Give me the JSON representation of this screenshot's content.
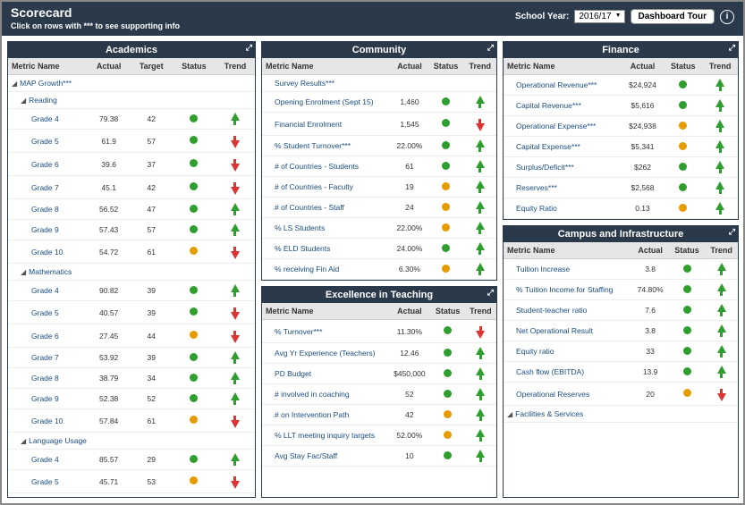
{
  "colors": {
    "green": "#2e9e2e",
    "orange": "#e69b00",
    "red": "#d33"
  },
  "header": {
    "title": "Scorecard",
    "subtitle": "Click on rows with *** to see supporting info",
    "schoolYearLabel": "School Year:",
    "schoolYear": "2016/17",
    "tour": "Dashboard Tour",
    "info": "i"
  },
  "columns": {
    "metric": "Metric Name",
    "actual": "Actual",
    "target": "Target",
    "status": "Status",
    "trend": "Trend"
  },
  "panels": {
    "academics": {
      "title": "Academics",
      "rows": [
        {
          "type": "group",
          "indent": 0,
          "name": "MAP Growth***"
        },
        {
          "type": "group",
          "indent": 1,
          "name": "Reading"
        },
        {
          "type": "row",
          "indent": 2,
          "name": "Grade 4",
          "actual": "79.38",
          "target": "42",
          "status": "green",
          "trend": "up-green"
        },
        {
          "type": "row",
          "indent": 2,
          "name": "Grade 5",
          "actual": "61.9",
          "target": "57",
          "status": "green",
          "trend": "down-red"
        },
        {
          "type": "row",
          "indent": 2,
          "name": "Grade 6",
          "actual": "39.6",
          "target": "37",
          "status": "green",
          "trend": "down-red"
        },
        {
          "type": "row",
          "indent": 2,
          "name": "Grade 7",
          "actual": "45.1",
          "target": "42",
          "status": "green",
          "trend": "down-red"
        },
        {
          "type": "row",
          "indent": 2,
          "name": "Grade 8",
          "actual": "56.52",
          "target": "47",
          "status": "green",
          "trend": "up-green"
        },
        {
          "type": "row",
          "indent": 2,
          "name": "Grade 9",
          "actual": "57.43",
          "target": "57",
          "status": "green",
          "trend": "up-green"
        },
        {
          "type": "row",
          "indent": 2,
          "name": "Grade 10",
          "actual": "54.72",
          "target": "61",
          "status": "orange",
          "trend": "down-red"
        },
        {
          "type": "group",
          "indent": 1,
          "name": "Mathematics"
        },
        {
          "type": "row",
          "indent": 2,
          "name": "Grade 4",
          "actual": "90.82",
          "target": "39",
          "status": "green",
          "trend": "up-green"
        },
        {
          "type": "row",
          "indent": 2,
          "name": "Grade 5",
          "actual": "40.57",
          "target": "39",
          "status": "green",
          "trend": "down-red"
        },
        {
          "type": "row",
          "indent": 2,
          "name": "Grade 6",
          "actual": "27.45",
          "target": "44",
          "status": "orange",
          "trend": "down-red"
        },
        {
          "type": "row",
          "indent": 2,
          "name": "Grade 7",
          "actual": "53.92",
          "target": "39",
          "status": "green",
          "trend": "up-green"
        },
        {
          "type": "row",
          "indent": 2,
          "name": "Grade 8",
          "actual": "38.79",
          "target": "34",
          "status": "green",
          "trend": "up-green"
        },
        {
          "type": "row",
          "indent": 2,
          "name": "Grade 9",
          "actual": "52.38",
          "target": "52",
          "status": "green",
          "trend": "up-green"
        },
        {
          "type": "row",
          "indent": 2,
          "name": "Grade 10",
          "actual": "57.84",
          "target": "61",
          "status": "orange",
          "trend": "down-red"
        },
        {
          "type": "group",
          "indent": 1,
          "name": "Language Usage"
        },
        {
          "type": "row",
          "indent": 2,
          "name": "Grade 4",
          "actual": "85.57",
          "target": "29",
          "status": "green",
          "trend": "up-green"
        },
        {
          "type": "row",
          "indent": 2,
          "name": "Grade 5",
          "actual": "45.71",
          "target": "53",
          "status": "orange",
          "trend": "down-red"
        }
      ]
    },
    "community": {
      "title": "Community",
      "rows": [
        {
          "name": "Survey Results***",
          "actual": "",
          "status": "",
          "trend": ""
        },
        {
          "name": "Opening Enrolment (Sept 15)",
          "actual": "1,460",
          "status": "green",
          "trend": "up-green"
        },
        {
          "name": "Financial Enrolment",
          "actual": "1,545",
          "status": "green",
          "trend": "down-red"
        },
        {
          "name": "% Student Turnover***",
          "actual": "22.00%",
          "status": "green",
          "trend": "up-green"
        },
        {
          "name": "# of Countries - Students",
          "actual": "61",
          "status": "green",
          "trend": "up-green"
        },
        {
          "name": "# of Countries - Faculty",
          "actual": "19",
          "status": "orange",
          "trend": "up-green"
        },
        {
          "name": "# of Countries - Staff",
          "actual": "24",
          "status": "orange",
          "trend": "up-green"
        },
        {
          "name": "% LS Students",
          "actual": "22.00%",
          "status": "orange",
          "trend": "up-green"
        },
        {
          "name": "% ELD Students",
          "actual": "24.00%",
          "status": "green",
          "trend": "up-green"
        },
        {
          "name": "% receiving Fin Aid",
          "actual": "6.30%",
          "status": "orange",
          "trend": "up-green"
        }
      ]
    },
    "finance": {
      "title": "Finance",
      "rows": [
        {
          "name": "Operational Revenue***",
          "actual": "$24,924",
          "status": "green",
          "trend": "up-green"
        },
        {
          "name": "Capital Revenue***",
          "actual": "$5,616",
          "status": "green",
          "trend": "up-green"
        },
        {
          "name": "Operational Expense***",
          "actual": "$24,938",
          "status": "orange",
          "trend": "up-green"
        },
        {
          "name": "Capital Expense***",
          "actual": "$5,341",
          "status": "orange",
          "trend": "up-green"
        },
        {
          "name": "Surplus/Deficit***",
          "actual": "$262",
          "status": "green",
          "trend": "up-green"
        },
        {
          "name": "Reserves***",
          "actual": "$2,568",
          "status": "green",
          "trend": "up-green"
        },
        {
          "name": "Equity Ratio",
          "actual": "0.13",
          "status": "orange",
          "trend": "up-green"
        }
      ]
    },
    "teaching": {
      "title": "Excellence in Teaching",
      "rows": [
        {
          "name": "% Turnover***",
          "actual": "11.30%",
          "status": "green",
          "trend": "down-red"
        },
        {
          "name": "Avg Yr Experience (Teachers)",
          "actual": "12.46",
          "status": "green",
          "trend": "up-green"
        },
        {
          "name": "PD Budget",
          "actual": "$450,000",
          "status": "green",
          "trend": "up-green"
        },
        {
          "name": "# involved in coaching",
          "actual": "52",
          "status": "green",
          "trend": "up-green"
        },
        {
          "name": "# on Intervention Path",
          "actual": "42",
          "status": "orange",
          "trend": "up-green"
        },
        {
          "name": "% LLT meeting inquiry targets",
          "actual": "52.00%",
          "status": "orange",
          "trend": "up-green"
        },
        {
          "name": "Avg Stay Fac/Staff",
          "actual": "10",
          "status": "green",
          "trend": "up-green"
        }
      ]
    },
    "campus": {
      "title": "Campus and Infrastructure",
      "rows": [
        {
          "name": "Tuition Increase",
          "actual": "3.8",
          "status": "green",
          "trend": "up-green"
        },
        {
          "name": "% Tuition Income for Staffing",
          "actual": "74.80%",
          "status": "green",
          "trend": "up-green"
        },
        {
          "name": "Student-teacher ratio",
          "actual": "7.6",
          "status": "green",
          "trend": "up-green"
        },
        {
          "name": "Net Operational Result",
          "actual": "3.8",
          "status": "green",
          "trend": "up-green"
        },
        {
          "name": "Equity ratio",
          "actual": "33",
          "status": "green",
          "trend": "up-green"
        },
        {
          "name": "Cash flow (EBITDA)",
          "actual": "13.9",
          "status": "green",
          "trend": "up-green"
        },
        {
          "name": "Operational Reserves",
          "actual": "20",
          "status": "orange",
          "trend": "down-red"
        },
        {
          "type": "group",
          "name": "Facilities & Services"
        }
      ]
    }
  }
}
